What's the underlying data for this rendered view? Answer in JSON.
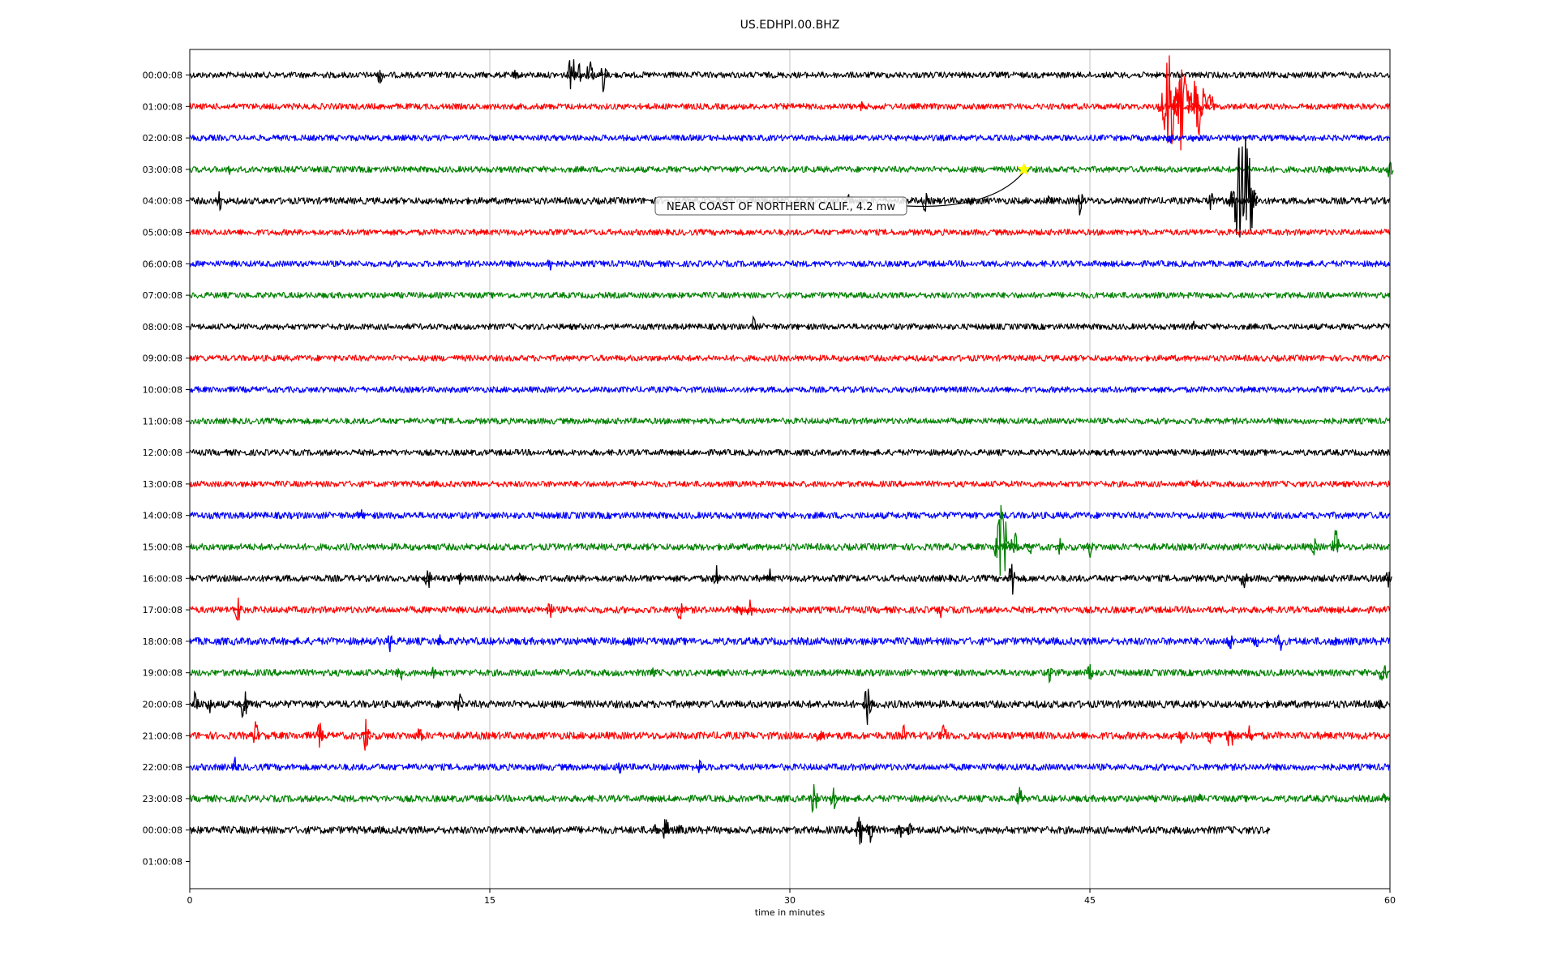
{
  "chart_data": {
    "type": "line",
    "title": "US.EDHPI.00.BHZ",
    "xlabel": "time in minutes",
    "ylabel": "",
    "xlim": [
      0,
      60
    ],
    "xticks": [
      0,
      15,
      30,
      45,
      60
    ],
    "xtick_labels": [
      "0",
      "15",
      "30",
      "45",
      "60"
    ],
    "grid": "vertical lines at x ticks",
    "row_labels": [
      "00:00:08",
      "01:00:08",
      "02:00:08",
      "03:00:08",
      "04:00:08",
      "05:00:08",
      "06:00:08",
      "07:00:08",
      "08:00:08",
      "09:00:08",
      "10:00:08",
      "11:00:08",
      "12:00:08",
      "13:00:08",
      "14:00:08",
      "15:00:08",
      "16:00:08",
      "17:00:08",
      "18:00:08",
      "19:00:08",
      "20:00:08",
      "21:00:08",
      "22:00:08",
      "23:00:08",
      "00:00:08",
      "01:00:08"
    ],
    "trace_colors": [
      "#000000",
      "#ff0000",
      "#0000ff",
      "#008000"
    ],
    "traces": [
      {
        "row": 0,
        "noise": 0.9,
        "end": 60,
        "events": [
          [
            9.5,
            3
          ],
          [
            16.3,
            2
          ],
          [
            19.1,
            6
          ],
          [
            19.5,
            4
          ],
          [
            20.0,
            5
          ],
          [
            20.7,
            5
          ]
        ]
      },
      {
        "row": 1,
        "noise": 0.9,
        "end": 60,
        "events": [
          [
            33.6,
            2
          ],
          [
            49.0,
            18
          ],
          [
            49.6,
            14
          ],
          [
            50.2,
            9
          ],
          [
            50.5,
            10
          ],
          [
            51.0,
            5
          ]
        ]
      },
      {
        "row": 2,
        "noise": 0.9,
        "end": 60,
        "events": [
          [
            49.0,
            2
          ],
          [
            50.2,
            2
          ]
        ]
      },
      {
        "row": 3,
        "noise": 0.9,
        "end": 60,
        "events": [
          [
            2.0,
            2
          ],
          [
            57.0,
            2
          ],
          [
            60.0,
            3
          ]
        ]
      },
      {
        "row": 4,
        "noise": 1.0,
        "end": 60,
        "events": [
          [
            1.5,
            3
          ],
          [
            30.5,
            3
          ],
          [
            33.0,
            4
          ],
          [
            36.8,
            4
          ],
          [
            39.0,
            2
          ],
          [
            43.0,
            3
          ],
          [
            44.5,
            4
          ],
          [
            51.0,
            4
          ],
          [
            52.0,
            4
          ],
          [
            52.7,
            22
          ],
          [
            53.2,
            4
          ]
        ]
      },
      {
        "row": 5,
        "noise": 0.9,
        "end": 60,
        "events": []
      },
      {
        "row": 6,
        "noise": 0.9,
        "end": 60,
        "events": [
          [
            18.0,
            2
          ]
        ]
      },
      {
        "row": 7,
        "noise": 0.9,
        "end": 60,
        "events": []
      },
      {
        "row": 8,
        "noise": 0.9,
        "end": 60,
        "events": [
          [
            28.2,
            3
          ],
          [
            50.2,
            2
          ]
        ]
      },
      {
        "row": 9,
        "noise": 0.9,
        "end": 60,
        "events": []
      },
      {
        "row": 10,
        "noise": 0.9,
        "end": 60,
        "events": []
      },
      {
        "row": 11,
        "noise": 0.9,
        "end": 60,
        "events": []
      },
      {
        "row": 12,
        "noise": 0.9,
        "end": 60,
        "events": []
      },
      {
        "row": 13,
        "noise": 0.9,
        "end": 60,
        "events": [
          [
            50.3,
            3
          ]
        ]
      },
      {
        "row": 14,
        "noise": 1.0,
        "end": 60,
        "events": [
          [
            8.5,
            3
          ]
        ]
      },
      {
        "row": 15,
        "noise": 1.0,
        "end": 60,
        "events": [
          [
            40.6,
            12
          ],
          [
            41.2,
            5
          ],
          [
            42.0,
            3
          ],
          [
            43.5,
            3
          ],
          [
            45.0,
            3
          ],
          [
            56.2,
            3
          ],
          [
            57.3,
            5
          ]
        ]
      },
      {
        "row": 16,
        "noise": 1.0,
        "end": 60,
        "events": [
          [
            11.9,
            4
          ],
          [
            13.5,
            2
          ],
          [
            16.5,
            2
          ],
          [
            26.3,
            5
          ],
          [
            29.0,
            3
          ],
          [
            41.1,
            5
          ],
          [
            52.7,
            4
          ],
          [
            59.9,
            4
          ]
        ]
      },
      {
        "row": 17,
        "noise": 1.0,
        "end": 60,
        "events": [
          [
            2.4,
            4
          ],
          [
            18.0,
            3
          ],
          [
            24.5,
            3
          ],
          [
            27.5,
            3
          ],
          [
            28.0,
            3
          ],
          [
            37.5,
            3
          ]
        ]
      },
      {
        "row": 18,
        "noise": 1.1,
        "end": 60,
        "events": [
          [
            10.0,
            3
          ],
          [
            12.5,
            3
          ],
          [
            22.0,
            2
          ],
          [
            52.0,
            3
          ],
          [
            53.3,
            3
          ],
          [
            54.5,
            3
          ],
          [
            57.2,
            3
          ]
        ]
      },
      {
        "row": 19,
        "noise": 1.0,
        "end": 60,
        "events": [
          [
            10.5,
            3
          ],
          [
            12.2,
            2
          ],
          [
            23.2,
            2
          ],
          [
            43.0,
            3
          ],
          [
            45.0,
            3
          ],
          [
            59.7,
            6
          ]
        ]
      },
      {
        "row": 20,
        "noise": 1.1,
        "end": 60,
        "events": [
          [
            0.3,
            4
          ],
          [
            1.0,
            3
          ],
          [
            2.7,
            5
          ],
          [
            13.5,
            3
          ],
          [
            33.9,
            6
          ],
          [
            59.5,
            2
          ]
        ]
      },
      {
        "row": 21,
        "noise": 1.1,
        "end": 60,
        "events": [
          [
            3.3,
            4
          ],
          [
            6.5,
            4
          ],
          [
            8.8,
            5
          ],
          [
            11.5,
            3
          ],
          [
            31.5,
            4
          ],
          [
            35.7,
            3
          ],
          [
            37.7,
            4
          ],
          [
            49.5,
            3
          ],
          [
            51.0,
            3
          ],
          [
            52.0,
            5
          ],
          [
            53.0,
            3
          ]
        ]
      },
      {
        "row": 22,
        "noise": 1.0,
        "end": 60,
        "events": [
          [
            2.3,
            3
          ],
          [
            21.5,
            2
          ],
          [
            25.5,
            2
          ]
        ]
      },
      {
        "row": 23,
        "noise": 1.0,
        "end": 60,
        "events": [
          [
            31.2,
            5
          ],
          [
            32.2,
            4
          ],
          [
            41.5,
            4
          ],
          [
            50.5,
            2
          ],
          [
            59.7,
            2
          ]
        ]
      },
      {
        "row": 24,
        "noise": 1.1,
        "end": 54,
        "events": [
          [
            23.3,
            3
          ],
          [
            23.8,
            4
          ],
          [
            24.5,
            3
          ],
          [
            33.5,
            5
          ],
          [
            34.0,
            4
          ],
          [
            35.5,
            3
          ],
          [
            36.0,
            3
          ]
        ]
      }
    ],
    "annotation": {
      "label": "NEAR COAST OF NORTHERN CALIF., 4.2 mw",
      "marker": "star",
      "marker_color": "#ffff00",
      "row": 3,
      "x": 41.7
    }
  }
}
